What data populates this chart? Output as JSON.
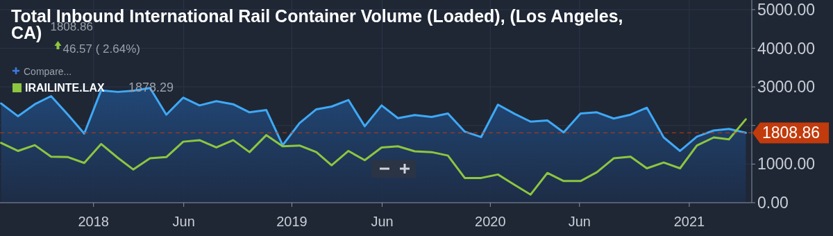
{
  "chart_data": {
    "type": "line",
    "title": "Total Inbound International Rail Container Volume (Loaded), (Los Angeles, CA)",
    "annotations": [
      "1808.86",
      "46.57 ( 2.64%)",
      "Compare...",
      "1878.29"
    ],
    "x": [
      "2017-07-15",
      "2017-08-15",
      "2017-09-15",
      "2017-10-15",
      "2017-11-15",
      "2017-12-15",
      "2018-01-15",
      "2018-02-15",
      "2018-03-15",
      "2018-04-15",
      "2018-05-15",
      "2018-06-15",
      "2018-07-15",
      "2018-08-15",
      "2018-09-15",
      "2018-10-15",
      "2018-11-15",
      "2018-12-15",
      "2019-01-15",
      "2019-02-15",
      "2019-03-15",
      "2019-04-15",
      "2019-05-15",
      "2019-06-15",
      "2019-07-15",
      "2019-08-15",
      "2019-09-15",
      "2019-10-15",
      "2019-11-15",
      "2019-12-15",
      "2020-01-15",
      "2020-02-15",
      "2020-03-15",
      "2020-04-15",
      "2020-05-15",
      "2020-06-15",
      "2020-07-15",
      "2020-08-15",
      "2020-09-15",
      "2020-10-15",
      "2020-11-15",
      "2020-12-15",
      "2021-01-15",
      "2021-02-15",
      "2021-03-15",
      "2021-04-15"
    ],
    "series": [
      {
        "type": "area",
        "color": "#3fa9f5",
        "values": [
          2570,
          2240,
          2550,
          2760,
          2280,
          1790,
          2910,
          2870,
          2900,
          2970,
          2280,
          2720,
          2520,
          2630,
          2550,
          2340,
          2400,
          1490,
          2060,
          2420,
          2490,
          2660,
          1980,
          2520,
          2190,
          2270,
          2220,
          2310,
          1840,
          1700,
          2540,
          2300,
          2100,
          2130,
          1820,
          2310,
          2340,
          2180,
          2280,
          2460,
          1690,
          1340,
          1710,
          1870,
          1910,
          1810
        ]
      },
      {
        "name": "IRAILINTE.LAX",
        "color": "#8dc63f",
        "values": [
          1550,
          1340,
          1490,
          1190,
          1180,
          1030,
          1520,
          1160,
          860,
          1150,
          1180,
          1580,
          1620,
          1430,
          1620,
          1310,
          1750,
          1460,
          1480,
          1310,
          970,
          1340,
          1100,
          1430,
          1460,
          1330,
          1310,
          1220,
          640,
          640,
          730,
          460,
          210,
          770,
          560,
          560,
          790,
          1150,
          1190,
          890,
          1040,
          890,
          1480,
          1690,
          1640,
          2160
        ]
      }
    ],
    "xlim": [
      "2017-07-13",
      "2021-04-26"
    ],
    "xticks": [
      {
        "value": "2018-01-01",
        "label": "2018"
      },
      {
        "value": "2018-06-16",
        "label": "Jun"
      },
      {
        "value": "2019-01-01",
        "label": "2019"
      },
      {
        "value": "2019-06-16",
        "label": "Jun"
      },
      {
        "value": "2020-01-01",
        "label": "2020"
      },
      {
        "value": "2020-06-13",
        "label": "Jun"
      },
      {
        "value": "2021-01-01",
        "label": "2021"
      }
    ],
    "ylim": [
      0,
      5250
    ],
    "yticks": [
      {
        "value": 0,
        "label": "0.00"
      },
      {
        "value": 1000,
        "label": "1000.00"
      },
      {
        "value": 2000,
        "label": null
      },
      {
        "value": 3000,
        "label": "3000.00"
      },
      {
        "value": 4000,
        "label": "4000.00"
      },
      {
        "value": 5000,
        "label": "5000.00"
      }
    ],
    "ref_lines": [
      {
        "axis": "y",
        "value": 1808.86,
        "label": "1808.86",
        "color": "#c23b0c",
        "line_style": "dashed"
      }
    ],
    "grid": true,
    "legend": "top left"
  }
}
